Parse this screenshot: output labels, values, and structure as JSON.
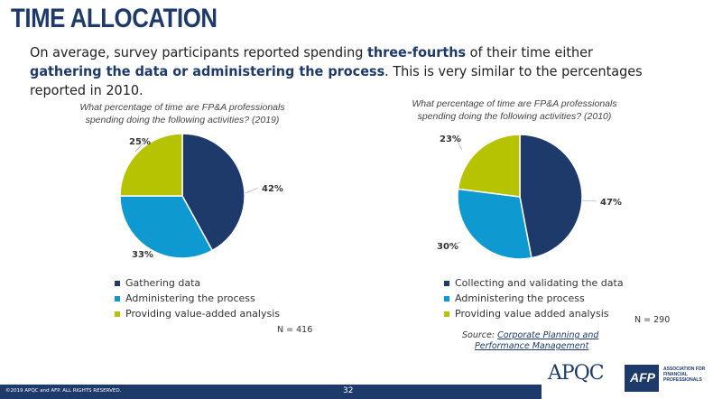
{
  "slide": {
    "title": "TIME ALLOCATION",
    "subtitle_parts": {
      "p1": "On average, survey participants reported spending ",
      "h1": "three-fourths",
      "p2": " of their time either ",
      "h2": "gathering the data or administering the process",
      "p3": ". This is very similar to the percentages reported in 2010."
    },
    "page_number": "32",
    "copyright": "©2019 APQC and AFP. ALL RIGHTS RESERVED.",
    "source_label": "Source: ",
    "source_link_line1": "Corporate Planning and",
    "source_link_line2": "Performance Management",
    "logo_apqc": "APQC",
    "logo_afp": "AFP",
    "logo_afp_desc": "ASSOCIATION FOR FINANCIAL PROFESSIONALS"
  },
  "colors": {
    "dark_blue": "#1d3a6b",
    "light_blue": "#0e9ad1",
    "olive": "#b5c300"
  },
  "chart_data": [
    {
      "type": "pie",
      "title_line1": "What percentage of time are FP&A professionals",
      "title_line2": "spending doing the following activities? (2019)",
      "categories": [
        "Gathering data",
        "Administering the process",
        "Providing value-added analysis"
      ],
      "values": [
        42,
        33,
        25
      ],
      "labels": [
        "42%",
        "33%",
        "25%"
      ],
      "colors": [
        "#1d3a6b",
        "#0e9ad1",
        "#b5c300"
      ],
      "n_label": "N = 416"
    },
    {
      "type": "pie",
      "title_line1": "What percentage of time are FP&A professionals",
      "title_line2": "spending doing the following activities? (2010)",
      "categories": [
        "Collecting and validating the data",
        "Administering the process",
        "Providing value added analysis"
      ],
      "values": [
        47,
        30,
        23
      ],
      "labels": [
        "47%",
        "30%",
        "23%"
      ],
      "colors": [
        "#1d3a6b",
        "#0e9ad1",
        "#b5c300"
      ],
      "n_label": "N = 290"
    }
  ]
}
